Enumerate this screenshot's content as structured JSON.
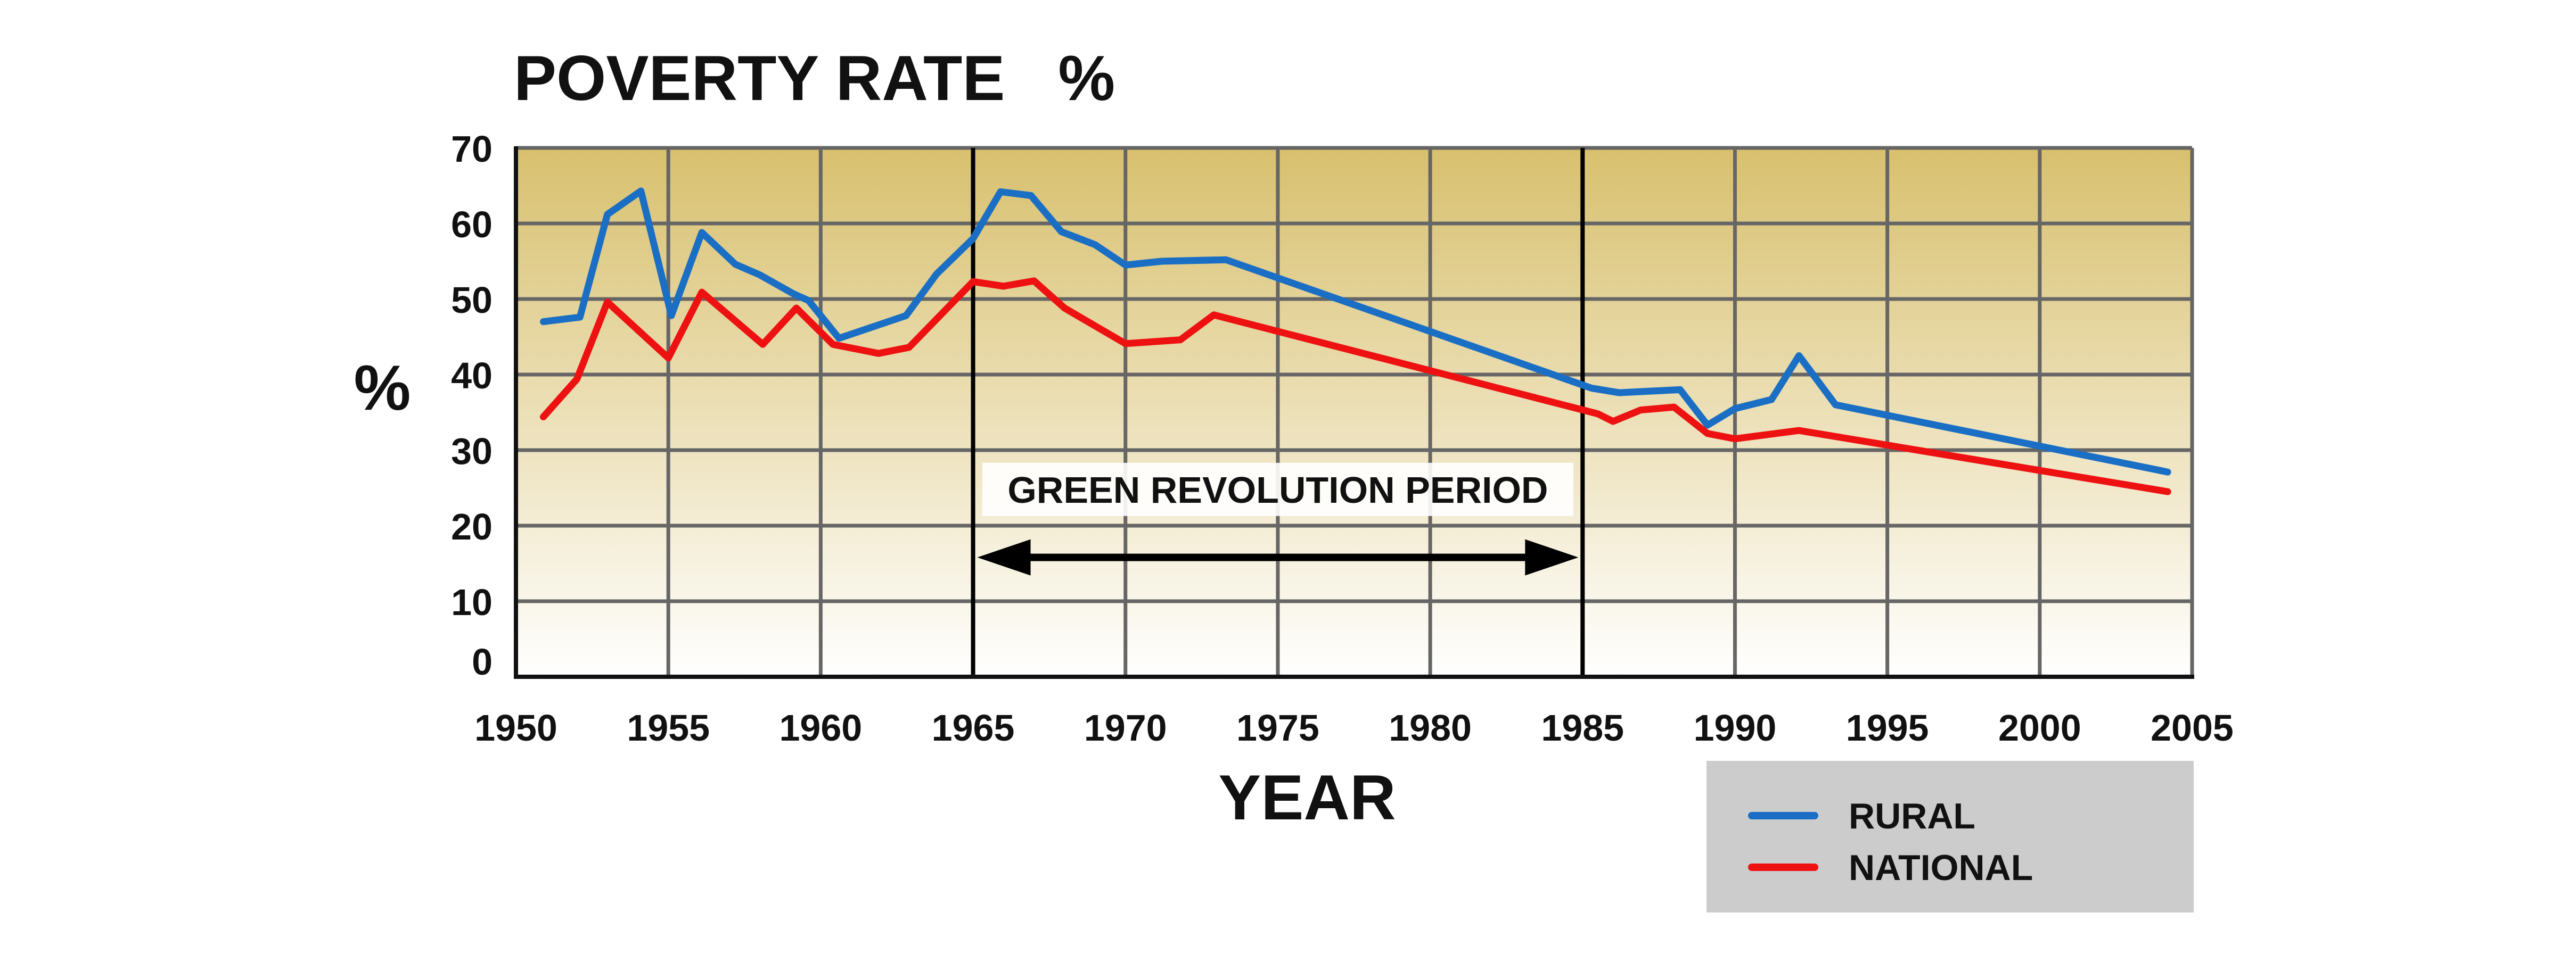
{
  "chart_data": {
    "type": "line",
    "title": "POVERTY RATE   %",
    "xlabel": "YEAR",
    "ylabel": "%",
    "xlim": [
      1950,
      2005
    ],
    "ylim": [
      0,
      70
    ],
    "x_ticks": [
      1950,
      1955,
      1960,
      1965,
      1970,
      1975,
      1980,
      1985,
      1990,
      1995,
      2000,
      2005
    ],
    "y_ticks": [
      0,
      10,
      20,
      30,
      40,
      50,
      60,
      70
    ],
    "grid": true,
    "background_gradient": [
      "#d8c06e",
      "#ffffff"
    ],
    "legend": {
      "placement": "bottom-right",
      "background": "#cccccc"
    },
    "series": [
      {
        "name": "RURAL",
        "color": "#1a6fc4",
        "points": [
          [
            1950.9,
            47
          ],
          [
            1952.1,
            47.6
          ],
          [
            1953.0,
            61.2
          ],
          [
            1954.1,
            64.3
          ],
          [
            1955.1,
            47.8
          ],
          [
            1956.1,
            58.8
          ],
          [
            1957.2,
            54.6
          ],
          [
            1958.0,
            53.2
          ],
          [
            1959.1,
            50.7
          ],
          [
            1959.6,
            49.8
          ],
          [
            1960.6,
            44.8
          ],
          [
            1962.8,
            47.8
          ],
          [
            1963.8,
            53.3
          ],
          [
            1965.0,
            58.0
          ],
          [
            1965.9,
            64.2
          ],
          [
            1966.9,
            63.7
          ],
          [
            1967.9,
            58.9
          ],
          [
            1969.0,
            57.2
          ],
          [
            1970.0,
            54.5
          ],
          [
            1971.2,
            55.0
          ],
          [
            1973.3,
            55.2
          ],
          [
            1985.3,
            38.2
          ],
          [
            1986.2,
            37.6
          ],
          [
            1988.2,
            38.0
          ],
          [
            1989.1,
            33.3
          ],
          [
            1990.0,
            35.5
          ],
          [
            1991.2,
            36.7
          ],
          [
            1992.1,
            42.5
          ],
          [
            1993.3,
            36.0
          ],
          [
            2004.2,
            27.1
          ]
        ]
      },
      {
        "name": "NATIONAL",
        "color": "#ee1111",
        "points": [
          [
            1950.9,
            34.4
          ],
          [
            1952.0,
            39.4
          ],
          [
            1953.0,
            49.6
          ],
          [
            1955.0,
            42.2
          ],
          [
            1956.1,
            50.9
          ],
          [
            1958.1,
            44.0
          ],
          [
            1959.2,
            48.8
          ],
          [
            1960.4,
            44.0
          ],
          [
            1961.9,
            42.8
          ],
          [
            1962.9,
            43.6
          ],
          [
            1965.0,
            52.3
          ],
          [
            1966.0,
            51.7
          ],
          [
            1967.0,
            52.4
          ],
          [
            1968.0,
            48.8
          ],
          [
            1970.0,
            44.1
          ],
          [
            1971.8,
            44.6
          ],
          [
            1972.9,
            47.9
          ],
          [
            1985.5,
            34.8
          ],
          [
            1986.0,
            33.8
          ],
          [
            1986.9,
            35.3
          ],
          [
            1988.0,
            35.7
          ],
          [
            1989.1,
            32.2
          ],
          [
            1990.0,
            31.5
          ],
          [
            1992.1,
            32.6
          ],
          [
            2004.2,
            24.5
          ]
        ]
      }
    ],
    "annotations": [
      {
        "label": "GREEN REVOLUTION PERIOD",
        "x_start": 1965,
        "x_end": 1985,
        "type": "double-arrow",
        "arrow_y": 15.8,
        "label_y": 24.8,
        "vertical_lines_at": [
          1965,
          1985
        ]
      }
    ]
  }
}
